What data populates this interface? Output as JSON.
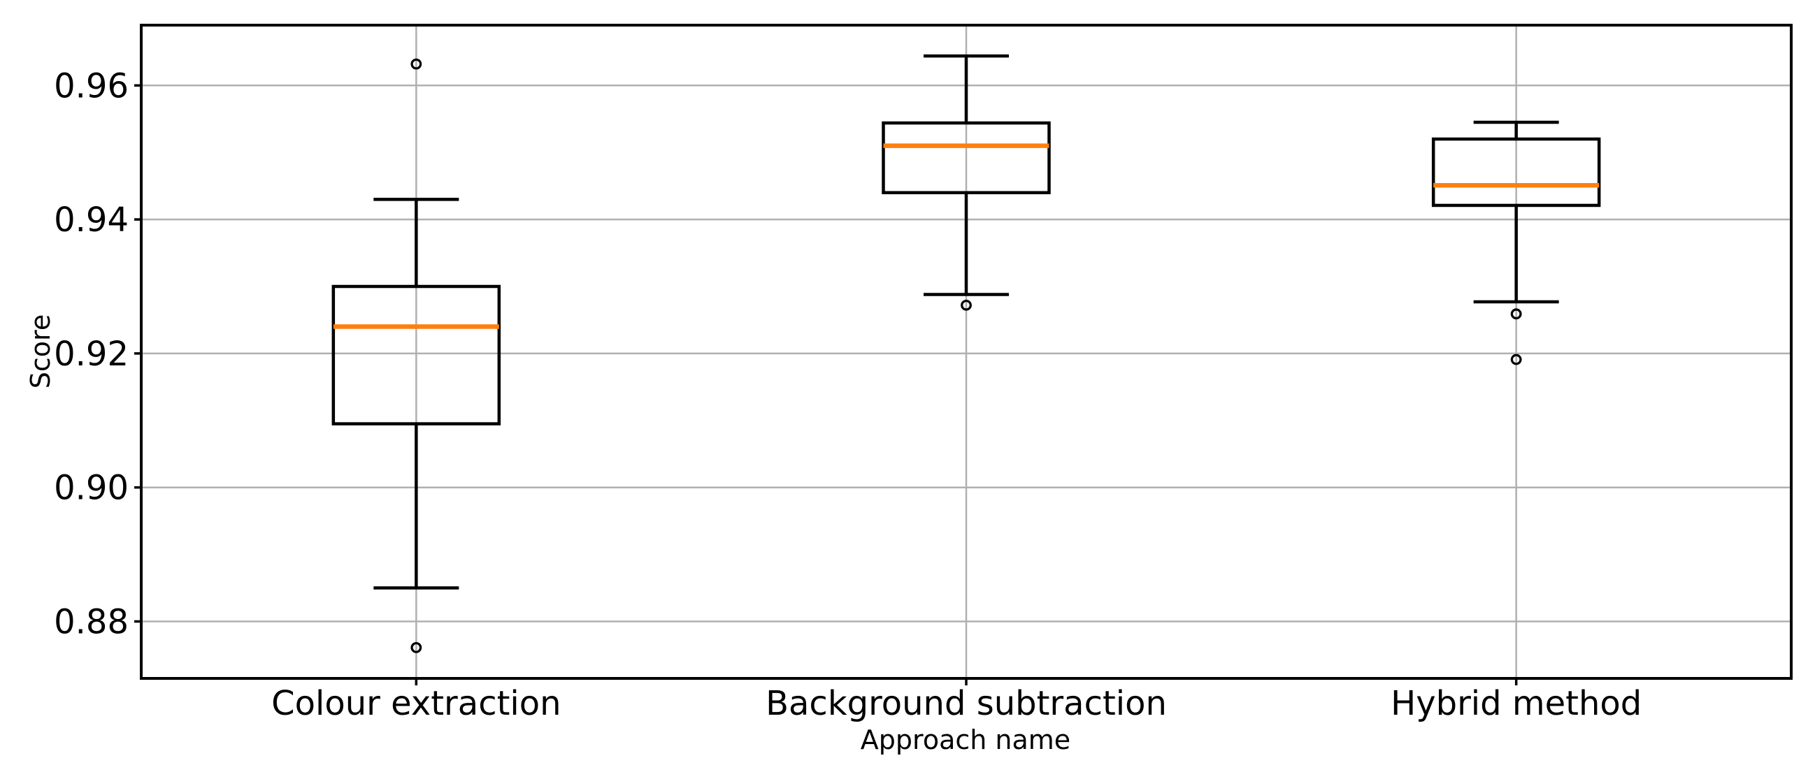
{
  "figure": {
    "background": "#ffffff"
  },
  "chart_data": {
    "type": "boxplot",
    "title": "",
    "xlabel": "Approach name",
    "ylabel": "Score",
    "categories": [
      "Colour extraction",
      "Background subtraction",
      "Hybrid method"
    ],
    "ylim": [
      0.8715,
      0.969
    ],
    "xlim": [
      0.5,
      3.5
    ],
    "yticks": [
      0.88,
      0.9,
      0.92,
      0.94,
      0.96
    ],
    "ytick_labels": [
      "0.88",
      "0.90",
      "0.92",
      "0.94",
      "0.96"
    ],
    "grid": true,
    "legend": false,
    "boxes": [
      {
        "label": "Colour extraction",
        "whislo": 0.885,
        "q1": 0.9095,
        "med": 0.924,
        "q3": 0.93,
        "whishi": 0.943,
        "fliers": [
          0.9632,
          0.8761
        ]
      },
      {
        "label": "Background subtraction",
        "whislo": 0.9288,
        "q1": 0.944,
        "med": 0.951,
        "q3": 0.9544,
        "whishi": 0.9644,
        "fliers": [
          0.9272
        ]
      },
      {
        "label": "Hybrid method",
        "whislo": 0.9277,
        "q1": 0.9421,
        "med": 0.9451,
        "q3": 0.952,
        "whishi": 0.9545,
        "fliers": [
          0.9259,
          0.9191
        ]
      }
    ],
    "colors": {
      "background": "#ffffff",
      "median": "#ff7f0e",
      "box": "#000000",
      "whisker": "#000000",
      "flier": "#000000",
      "grid": "#b0b0b0",
      "spine": "#000000",
      "text": "#000000"
    }
  }
}
